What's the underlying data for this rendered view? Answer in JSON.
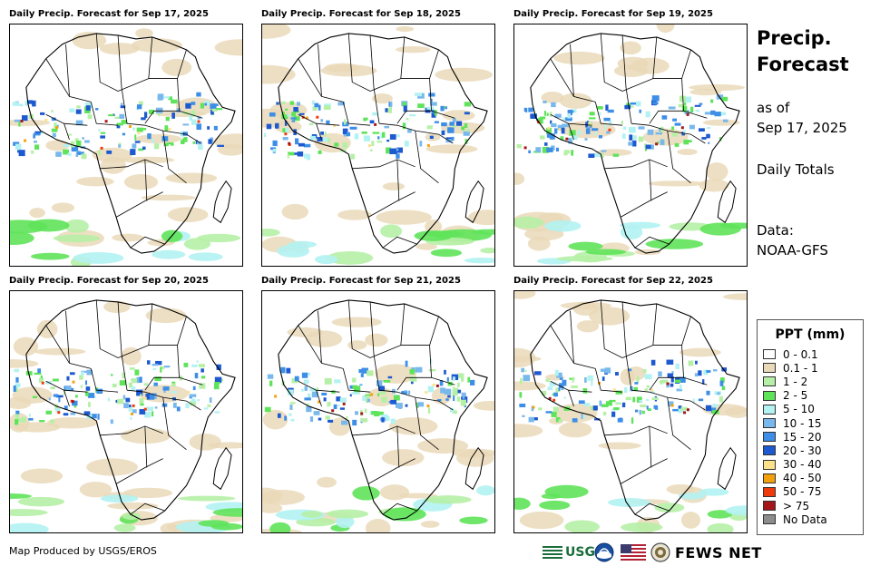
{
  "panels": [
    {
      "title": "Daily Precip. Forecast for Sep 17, 2025"
    },
    {
      "title": "Daily Precip. Forecast for Sep 18, 2025"
    },
    {
      "title": "Daily Precip. Forecast for Sep 19, 2025"
    },
    {
      "title": "Daily Precip. Forecast for Sep 20, 2025"
    },
    {
      "title": "Daily Precip. Forecast for Sep 21, 2025"
    },
    {
      "title": "Daily Precip. Forecast for Sep 22, 2025"
    }
  ],
  "side": {
    "title_line1": "Precip.",
    "title_line2": "Forecast",
    "asof_line1": "as of",
    "asof_line2": "Sep 17, 2025",
    "totals": "Daily Totals",
    "data_line1": "Data:",
    "data_line2": "NOAA-GFS"
  },
  "legend": {
    "title": "PPT (mm)",
    "items": [
      {
        "label": "0 - 0.1",
        "color": "#ffffff"
      },
      {
        "label": "0.1 - 1",
        "color": "#ead9b8"
      },
      {
        "label": "1 - 2",
        "color": "#b6f0a6"
      },
      {
        "label": "2 - 5",
        "color": "#5fe35a"
      },
      {
        "label": "5 - 10",
        "color": "#b3f2f2"
      },
      {
        "label": "10 - 15",
        "color": "#79b8ec"
      },
      {
        "label": "15 - 20",
        "color": "#3d8ee6"
      },
      {
        "label": "20 - 30",
        "color": "#1d59cf"
      },
      {
        "label": "30 - 40",
        "color": "#fbe18c"
      },
      {
        "label": "40 - 50",
        "color": "#f3a00d"
      },
      {
        "label": "50 - 75",
        "color": "#ee3a0c"
      },
      {
        "label": "> 75",
        "color": "#a4161a"
      },
      {
        "label": "No Data",
        "color": "#8c8c8c"
      }
    ]
  },
  "footer": {
    "credit": "Map Produced by USGS/EROS",
    "usgs": "USGS",
    "fews": "FEWS NET"
  }
}
